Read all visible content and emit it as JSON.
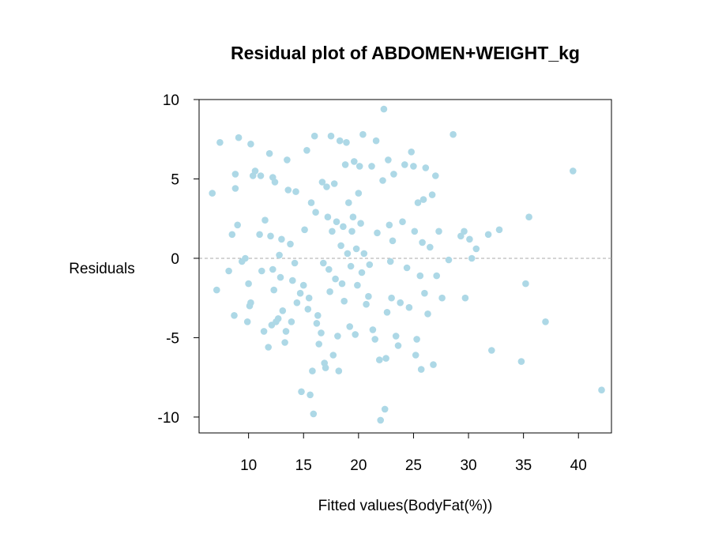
{
  "chart_data": {
    "type": "scatter",
    "title": "Residual plot of ABDOMEN+WEIGHT_kg",
    "xlabel": "Fitted values(BodyFat(%))",
    "ylabel": "Residuals",
    "xlim": [
      5.5,
      43
    ],
    "ylim": [
      -11,
      10
    ],
    "xticks": [
      10,
      15,
      20,
      25,
      30,
      35,
      40
    ],
    "xtick_labels": [
      "10",
      "15",
      "20",
      "25",
      "30",
      "35",
      "40"
    ],
    "yticks": [
      -10,
      -5,
      0,
      5,
      10
    ],
    "ytick_labels": [
      "-10",
      "-5",
      "0",
      "5",
      "10"
    ],
    "reference_line_y": 0,
    "grid": false,
    "point_color": "#add8e6",
    "reference_line_color": "#a9a9a9",
    "points": [
      [
        6.7,
        4.1
      ],
      [
        7.1,
        -2.0
      ],
      [
        7.4,
        7.3
      ],
      [
        8.2,
        -0.8
      ],
      [
        8.5,
        1.5
      ],
      [
        8.7,
        -3.6
      ],
      [
        8.8,
        5.3
      ],
      [
        8.8,
        4.4
      ],
      [
        9.0,
        2.1
      ],
      [
        9.1,
        7.6
      ],
      [
        9.4,
        -0.2
      ],
      [
        9.7,
        0.0
      ],
      [
        9.9,
        -4.0
      ],
      [
        10.0,
        -1.6
      ],
      [
        10.1,
        -3.0
      ],
      [
        10.2,
        -2.8
      ],
      [
        10.2,
        7.2
      ],
      [
        10.4,
        5.2
      ],
      [
        10.6,
        5.5
      ],
      [
        11.0,
        1.5
      ],
      [
        11.1,
        5.2
      ],
      [
        11.2,
        -0.8
      ],
      [
        11.4,
        -4.6
      ],
      [
        11.5,
        2.4
      ],
      [
        11.8,
        -5.6
      ],
      [
        11.9,
        6.6
      ],
      [
        12.0,
        1.4
      ],
      [
        12.1,
        -4.2
      ],
      [
        12.2,
        -0.7
      ],
      [
        12.2,
        5.1
      ],
      [
        12.3,
        -2.0
      ],
      [
        12.4,
        4.8
      ],
      [
        12.5,
        -4.0
      ],
      [
        12.7,
        -3.8
      ],
      [
        12.8,
        0.2
      ],
      [
        12.9,
        -1.2
      ],
      [
        13.0,
        1.2
      ],
      [
        13.1,
        -3.3
      ],
      [
        13.3,
        -5.3
      ],
      [
        13.4,
        -4.6
      ],
      [
        13.5,
        6.2
      ],
      [
        13.6,
        4.3
      ],
      [
        13.8,
        0.9
      ],
      [
        13.9,
        -4.0
      ],
      [
        14.0,
        -1.4
      ],
      [
        14.2,
        -0.3
      ],
      [
        14.3,
        4.2
      ],
      [
        14.4,
        -2.8
      ],
      [
        14.7,
        -2.2
      ],
      [
        14.8,
        -8.4
      ],
      [
        15.0,
        -1.7
      ],
      [
        15.1,
        1.8
      ],
      [
        15.3,
        6.8
      ],
      [
        15.4,
        -3.2
      ],
      [
        15.5,
        -2.5
      ],
      [
        15.6,
        -8.6
      ],
      [
        15.7,
        3.5
      ],
      [
        15.8,
        -7.1
      ],
      [
        15.9,
        -9.8
      ],
      [
        16.0,
        7.7
      ],
      [
        16.1,
        2.9
      ],
      [
        16.2,
        -4.1
      ],
      [
        16.3,
        -3.6
      ],
      [
        16.4,
        -5.4
      ],
      [
        16.6,
        -4.7
      ],
      [
        16.7,
        4.8
      ],
      [
        16.8,
        -0.3
      ],
      [
        16.9,
        -6.6
      ],
      [
        17.0,
        -6.9
      ],
      [
        17.1,
        4.5
      ],
      [
        17.2,
        2.6
      ],
      [
        17.3,
        -0.7
      ],
      [
        17.4,
        -2.1
      ],
      [
        17.5,
        7.7
      ],
      [
        17.6,
        1.7
      ],
      [
        17.7,
        -6.1
      ],
      [
        17.8,
        4.7
      ],
      [
        17.9,
        -1.3
      ],
      [
        18.0,
        2.3
      ],
      [
        18.1,
        -4.9
      ],
      [
        18.2,
        -7.1
      ],
      [
        18.3,
        7.4
      ],
      [
        18.4,
        0.8
      ],
      [
        18.5,
        -1.6
      ],
      [
        18.6,
        2.0
      ],
      [
        18.7,
        -2.7
      ],
      [
        18.8,
        5.9
      ],
      [
        18.9,
        7.3
      ],
      [
        19.0,
        0.3
      ],
      [
        19.1,
        3.5
      ],
      [
        19.2,
        -4.3
      ],
      [
        19.3,
        -0.5
      ],
      [
        19.4,
        1.7
      ],
      [
        19.5,
        2.6
      ],
      [
        19.6,
        6.1
      ],
      [
        19.7,
        -4.8
      ],
      [
        19.8,
        0.6
      ],
      [
        19.9,
        -1.7
      ],
      [
        20.0,
        4.1
      ],
      [
        20.1,
        5.8
      ],
      [
        20.2,
        2.2
      ],
      [
        20.3,
        -0.9
      ],
      [
        20.4,
        7.8
      ],
      [
        20.5,
        0.3
      ],
      [
        20.7,
        -2.9
      ],
      [
        20.9,
        -2.4
      ],
      [
        21.0,
        -0.4
      ],
      [
        21.2,
        5.8
      ],
      [
        21.3,
        -4.5
      ],
      [
        21.5,
        -5.1
      ],
      [
        21.6,
        7.4
      ],
      [
        21.7,
        1.6
      ],
      [
        21.9,
        -6.4
      ],
      [
        22.0,
        -10.2
      ],
      [
        22.2,
        4.9
      ],
      [
        22.3,
        9.4
      ],
      [
        22.4,
        -9.5
      ],
      [
        22.5,
        -6.3
      ],
      [
        22.6,
        -3.4
      ],
      [
        22.7,
        6.2
      ],
      [
        22.8,
        2.1
      ],
      [
        22.9,
        -0.2
      ],
      [
        23.0,
        -2.5
      ],
      [
        23.1,
        1.1
      ],
      [
        23.2,
        5.3
      ],
      [
        23.4,
        -4.9
      ],
      [
        23.6,
        -5.5
      ],
      [
        23.8,
        -2.8
      ],
      [
        24.0,
        2.3
      ],
      [
        24.2,
        5.9
      ],
      [
        24.4,
        -0.6
      ],
      [
        24.6,
        -3.1
      ],
      [
        24.8,
        6.7
      ],
      [
        25.0,
        5.8
      ],
      [
        25.1,
        1.7
      ],
      [
        25.2,
        -6.1
      ],
      [
        25.3,
        -5.1
      ],
      [
        25.4,
        3.5
      ],
      [
        25.6,
        -1.1
      ],
      [
        25.7,
        -7.0
      ],
      [
        25.8,
        1.0
      ],
      [
        25.9,
        3.7
      ],
      [
        26.0,
        -2.2
      ],
      [
        26.1,
        5.7
      ],
      [
        26.3,
        -3.5
      ],
      [
        26.5,
        0.7
      ],
      [
        26.7,
        4.0
      ],
      [
        26.8,
        -6.7
      ],
      [
        27.0,
        5.2
      ],
      [
        27.1,
        -1.1
      ],
      [
        27.3,
        1.7
      ],
      [
        27.6,
        -2.5
      ],
      [
        28.2,
        -0.1
      ],
      [
        28.6,
        7.8
      ],
      [
        29.3,
        1.4
      ],
      [
        29.6,
        1.7
      ],
      [
        29.7,
        -2.5
      ],
      [
        30.1,
        1.2
      ],
      [
        30.3,
        0.0
      ],
      [
        30.7,
        0.6
      ],
      [
        31.8,
        1.5
      ],
      [
        32.1,
        -5.8
      ],
      [
        32.8,
        1.8
      ],
      [
        34.8,
        -6.5
      ],
      [
        35.2,
        -1.6
      ],
      [
        35.5,
        2.6
      ],
      [
        37.0,
        -4.0
      ],
      [
        39.5,
        5.5
      ],
      [
        42.1,
        -8.3
      ]
    ]
  }
}
